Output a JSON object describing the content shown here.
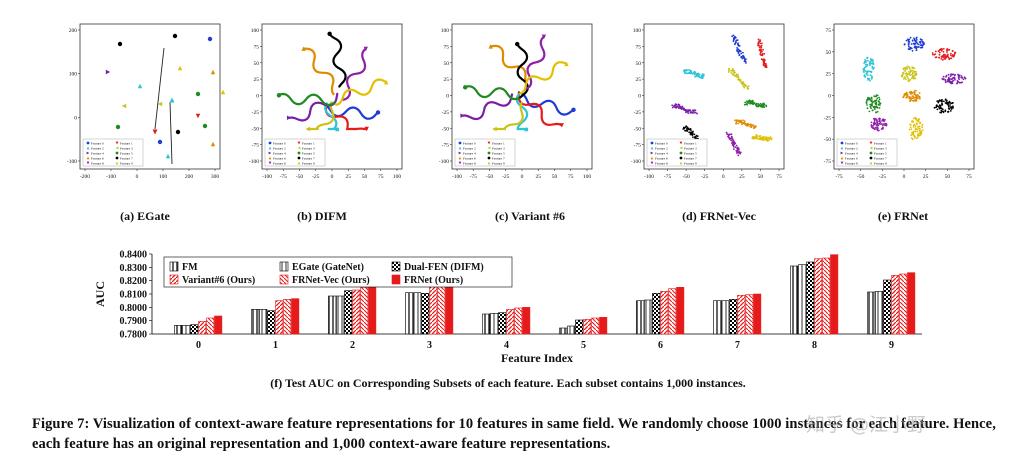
{
  "figure": {
    "caption": "Figure 7: Visualization of context-aware feature representations for 10 features in same field. We randomly choose 1000 instances for each feature. Hence, each feature has an original representation and 1,000 context-aware feature representations.",
    "watermark": "知乎 @江小野"
  },
  "legend_entries": [
    "Feature 0",
    "Feature 1",
    "Feature 2",
    "Feature 3",
    "Feature 4",
    "Feature 5",
    "Feature 6",
    "Feature 7",
    "Feature 8",
    "Feature 9"
  ],
  "colors": {
    "features": [
      "#1f3ad8",
      "#e51b1b",
      "#2ec4d6",
      "#c8c41a",
      "#7a1ea8",
      "#1f8a1f",
      "#e08a00",
      "#000000",
      "#8e1fa8",
      "#e0c000"
    ],
    "bar_red": "#e51b1b"
  },
  "panels": [
    {
      "id": "a",
      "caption": "(a) EGate",
      "xticks": [
        "-200",
        "-100",
        "0",
        "100",
        "200",
        "300"
      ],
      "yticks": [
        "200",
        "100",
        "0",
        "-100"
      ],
      "style": "points"
    },
    {
      "id": "b",
      "caption": "(b) DIFM",
      "xticks": [
        "-100",
        "-75",
        "-50",
        "-25",
        "0",
        "25",
        "50",
        "75",
        "100"
      ],
      "yticks": [
        "100",
        "75",
        "50",
        "25",
        "0",
        "-25",
        "-50",
        "-75",
        "-100"
      ],
      "style": "curves"
    },
    {
      "id": "c",
      "caption": "(c) Variant #6",
      "xticks": [
        "-100",
        "-75",
        "-50",
        "-25",
        "0",
        "25",
        "50",
        "75",
        "100"
      ],
      "yticks": [
        "100",
        "75",
        "50",
        "25",
        "0",
        "-25",
        "-50",
        "-75",
        "-100"
      ],
      "style": "curves"
    },
    {
      "id": "d",
      "caption": "(d) FRNet-Vec",
      "xticks": [
        "-100",
        "-75",
        "-50",
        "-25",
        "0",
        "25",
        "50",
        "75"
      ],
      "yticks": [
        "100",
        "75",
        "50",
        "25",
        "0",
        "-25",
        "-50",
        "-75",
        "-100"
      ],
      "style": "arcs"
    },
    {
      "id": "e",
      "caption": "(e) FRNet",
      "xticks": [
        "-75",
        "-50",
        "-25",
        "0",
        "25",
        "50",
        "75"
      ],
      "yticks": [
        "75",
        "50",
        "25",
        "0",
        "-25",
        "-50",
        "-75"
      ],
      "style": "clusters"
    }
  ],
  "chart_data": {
    "type": "bar",
    "caption": "(f) Test AUC on Corresponding Subsets of each feature. Each subset contains 1,000 instances.",
    "xlabel": "Feature Index",
    "ylabel": "AUC",
    "categories": [
      "0",
      "1",
      "2",
      "3",
      "4",
      "5",
      "6",
      "7",
      "8",
      "9"
    ],
    "ylim": [
      0.78,
      0.84
    ],
    "yticks": [
      "0.7800",
      "0.7900",
      "0.8000",
      "0.8100",
      "0.8200",
      "0.8300",
      "0.8400"
    ],
    "legend_position": "top-left",
    "series": [
      {
        "name": "FM",
        "pattern": "vstripe",
        "values": [
          0.7865,
          0.7985,
          0.8085,
          0.811,
          0.795,
          0.7845,
          0.805,
          0.805,
          0.831,
          0.8115
        ]
      },
      {
        "name": "EGate (GateNet)",
        "pattern": "vstripe2",
        "values": [
          0.7865,
          0.7985,
          0.8085,
          0.811,
          0.7955,
          0.786,
          0.8055,
          0.805,
          0.832,
          0.812
        ]
      },
      {
        "name": "Dual-FEN (DIFM)",
        "pattern": "cross",
        "values": [
          0.787,
          0.7975,
          0.8125,
          0.8105,
          0.796,
          0.7905,
          0.8105,
          0.806,
          0.834,
          0.8205
        ]
      },
      {
        "name": "Variant#6 (Ours)",
        "pattern": "diag",
        "values": [
          0.7895,
          0.805,
          0.813,
          0.8155,
          0.7985,
          0.791,
          0.812,
          0.809,
          0.8365,
          0.824
        ]
      },
      {
        "name": "FRNet-Vec (Ours)",
        "pattern": "diag2",
        "values": [
          0.792,
          0.806,
          0.815,
          0.8155,
          0.7995,
          0.792,
          0.814,
          0.8095,
          0.837,
          0.825
        ]
      },
      {
        "name": "FRNet (Ours)",
        "pattern": "solid",
        "values": [
          0.7935,
          0.8065,
          0.8155,
          0.8165,
          0.8,
          0.7925,
          0.815,
          0.81,
          0.8395,
          0.826
        ]
      }
    ]
  }
}
